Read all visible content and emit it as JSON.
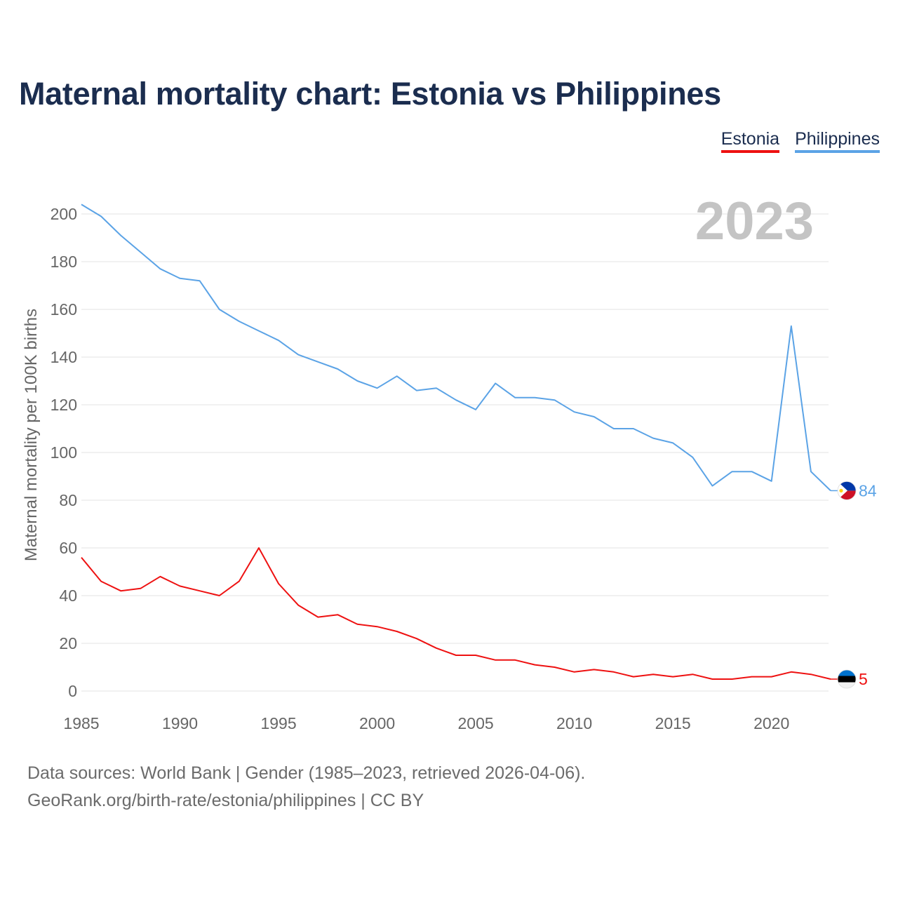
{
  "title": "Maternal mortality chart: Estonia vs Philippines",
  "legend": [
    {
      "label": "Estonia",
      "color": "#ee1111"
    },
    {
      "label": "Philippines",
      "color": "#5ba3e6"
    }
  ],
  "footer": {
    "source": "Data sources: World Bank | Gender (1985–2023, retrieved 2026-04-06).",
    "credit": "GeoRank.org/birth-rate/estonia/philippines | CC BY"
  },
  "chart_data": {
    "type": "line",
    "title": "Maternal mortality chart: Estonia vs Philippines",
    "xlabel": "",
    "ylabel": "Maternal mortality per 100K births",
    "year_label": "2023",
    "xlim": [
      1985,
      2023
    ],
    "ylim": [
      0,
      210
    ],
    "yticks": [
      0,
      20,
      40,
      60,
      80,
      100,
      120,
      140,
      160,
      180,
      200
    ],
    "xticks": [
      1985,
      1990,
      1995,
      2000,
      2005,
      2010,
      2015,
      2020
    ],
    "grid": true,
    "x": [
      1985,
      1986,
      1987,
      1988,
      1989,
      1990,
      1991,
      1992,
      1993,
      1994,
      1995,
      1996,
      1997,
      1998,
      1999,
      2000,
      2001,
      2002,
      2003,
      2004,
      2005,
      2006,
      2007,
      2008,
      2009,
      2010,
      2011,
      2012,
      2013,
      2014,
      2015,
      2016,
      2017,
      2018,
      2019,
      2020,
      2021,
      2022,
      2023
    ],
    "series": [
      {
        "name": "Philippines",
        "color": "#5ba3e6",
        "flag_icon": "philippines-flag-icon",
        "end_label": "84",
        "values": [
          204,
          199,
          191,
          184,
          177,
          173,
          172,
          160,
          155,
          151,
          147,
          141,
          138,
          135,
          130,
          127,
          132,
          126,
          127,
          122,
          118,
          129,
          123,
          123,
          122,
          117,
          115,
          110,
          110,
          106,
          104,
          98,
          86,
          92,
          92,
          88,
          153,
          92,
          84
        ]
      },
      {
        "name": "Estonia",
        "color": "#ee1111",
        "flag_icon": "estonia-flag-icon",
        "end_label": "5",
        "values": [
          56,
          46,
          42,
          43,
          48,
          44,
          42,
          40,
          46,
          60,
          45,
          36,
          31,
          32,
          28,
          27,
          25,
          22,
          18,
          15,
          15,
          13,
          13,
          11,
          10,
          8,
          9,
          8,
          6,
          7,
          6,
          7,
          5,
          5,
          6,
          6,
          8,
          7,
          5
        ]
      }
    ]
  }
}
